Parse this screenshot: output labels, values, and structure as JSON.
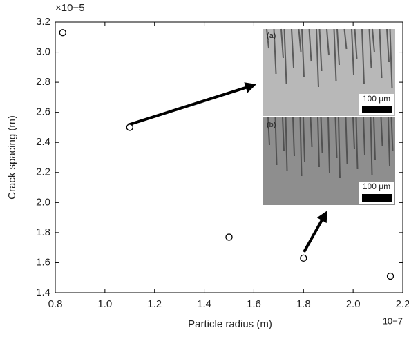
{
  "chart_data": {
    "type": "scatter",
    "xlabel": "Particle radius (m)",
    "ylabel": "Crack spacing (m)",
    "x_multiplier": "10−7",
    "y_multiplier": "×10−5",
    "x": [
      0.83,
      1.1,
      1.5,
      1.8,
      2.15
    ],
    "values": [
      3.13,
      2.5,
      1.77,
      1.63,
      1.51
    ],
    "color": "#000000",
    "xlim": [
      0.8,
      2.2
    ],
    "xticks": [
      0.8,
      {
        "value": 1,
        "label": "1.0"
      },
      1.2,
      1.4,
      1.6,
      1.8,
      {
        "value": 2,
        "label": "2.0"
      },
      2.2
    ],
    "ylim": [
      1.4,
      3.2
    ],
    "yticks": [
      1.4,
      1.6,
      1.8,
      {
        "value": 2,
        "label": "2.0"
      },
      2.2,
      2.4,
      2.6,
      2.8,
      {
        "value": 3,
        "label": "3.0"
      },
      3.2
    ],
    "insets": [
      {
        "label": "(a)",
        "scale_label": "100 μm"
      },
      {
        "label": "(b)",
        "scale_label": "100 μm"
      }
    ]
  }
}
